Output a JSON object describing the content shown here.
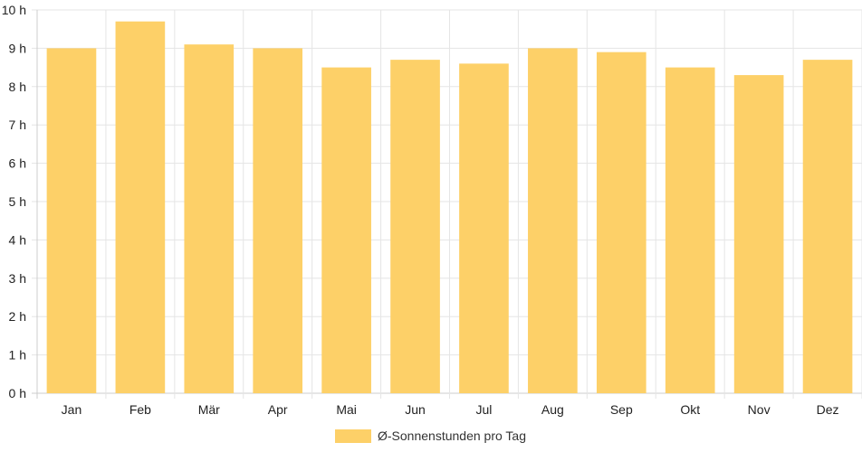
{
  "chart_data": {
    "type": "bar",
    "categories": [
      "Jan",
      "Feb",
      "Mär",
      "Apr",
      "Mai",
      "Jun",
      "Jul",
      "Aug",
      "Sep",
      "Okt",
      "Nov",
      "Dez"
    ],
    "series": [
      {
        "name": "Ø-Sonnenstunden pro Tag",
        "values": [
          9.0,
          9.7,
          9.1,
          9.0,
          8.5,
          8.7,
          8.6,
          9.0,
          8.9,
          8.5,
          8.3,
          8.7
        ]
      }
    ],
    "y_ticks": [
      "0 h",
      "1 h",
      "2 h",
      "3 h",
      "4 h",
      "5 h",
      "6 h",
      "7 h",
      "8 h",
      "9 h",
      "10 h"
    ],
    "ylim": [
      0,
      10
    ],
    "grid": true,
    "legend_position": "bottom",
    "colors": {
      "bar": "#fdd068",
      "grid": "#e5e5e5",
      "axis": "#cccccc"
    }
  }
}
